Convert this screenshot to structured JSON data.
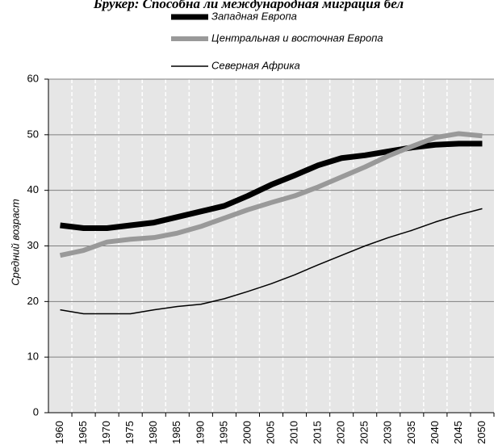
{
  "chart_data": {
    "type": "line",
    "title": "Брукер: Способна ли международная миграция бел",
    "y_label": "Средний возраст",
    "categories": [
      "1960",
      "1965",
      "1970",
      "1975",
      "1980",
      "1985",
      "1990",
      "1995",
      "2000",
      "2005",
      "2010",
      "2015",
      "2020",
      "2025",
      "2030",
      "2035",
      "2040",
      "2045",
      "2050"
    ],
    "series": [
      {
        "name": "Западная Европа",
        "color": "#000000",
        "values": [
          33.7,
          33.2,
          33.2,
          33.7,
          34.2,
          35.2,
          36.2,
          37.2,
          39,
          41,
          42.7,
          44.5,
          45.8,
          46.3,
          47,
          47.7,
          48.2,
          48.4,
          48.4
        ]
      },
      {
        "name": "Центральная и восточная Европа",
        "color": "#999999",
        "values": [
          28.3,
          29.2,
          30.7,
          31.2,
          31.5,
          32.3,
          33.5,
          35,
          36.5,
          37.8,
          39,
          40.6,
          42.4,
          44.2,
          46.2,
          47.9,
          49.5,
          50.2,
          49.8
        ]
      },
      {
        "name": "Северная Африка",
        "color": "#000000",
        "values": [
          18.5,
          17.8,
          17.8,
          17.8,
          18.5,
          19.1,
          19.5,
          20.5,
          21.8,
          23.2,
          24.8,
          26.6,
          28.3,
          30,
          31.5,
          32.8,
          34.3,
          35.6,
          36.7
        ]
      }
    ],
    "ylim": [
      0,
      60
    ],
    "yticks": [
      0,
      10,
      20,
      30,
      40,
      50,
      60
    ],
    "grid": true
  }
}
